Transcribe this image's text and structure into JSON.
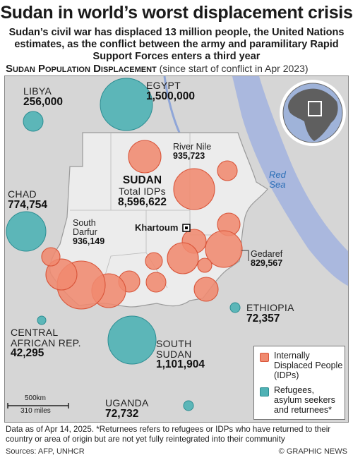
{
  "title": "Sudan in world’s worst displacement crisis",
  "subtitle": "Sudan’s civil war has displaced 13 million people, the United Nations estimates, as the conflict between the army and paramilitary Rapid Support Forces enters a third year",
  "section_title": "Sudan Population Displacement",
  "section_qualifier": "(since start of conflict in Apr 2023)",
  "sudan": {
    "name": "SUDAN",
    "label": "Total IDPs",
    "value": "8,596,622"
  },
  "countries": [
    {
      "name": "LIBYA",
      "value": "256,000"
    },
    {
      "name": "EGYPT",
      "value": "1,500,000"
    },
    {
      "name": "CHAD",
      "value": "774,754"
    },
    {
      "name": "CENTRAL AFRICAN REP.",
      "line1": "CENTRAL",
      "line2": "AFRICAN REP.",
      "value": "42,295"
    },
    {
      "name": "SOUTH SUDAN",
      "line1": "SOUTH",
      "line2": "SUDAN",
      "value": "1,101,904"
    },
    {
      "name": "ETHIOPIA",
      "value": "72,357"
    },
    {
      "name": "UGANDA",
      "value": "72,732"
    }
  ],
  "regions": [
    {
      "name": "River Nile",
      "value": "935,723"
    },
    {
      "name": "South Darfur",
      "line1": "South",
      "line2": "Darfur",
      "value": "936,149"
    },
    {
      "name": "Gedaref",
      "value": "829,567"
    }
  ],
  "capital": "Khartoum",
  "sea_label": {
    "line1": "Red",
    "line2": "Sea"
  },
  "legend": {
    "idps": "Internally Displaced People (IDPs)",
    "refugees": "Refugees, asylum seekers and returnees*"
  },
  "scale": {
    "km": "500km",
    "miles": "310 miles"
  },
  "colors": {
    "idp_fill": "#f08a6f",
    "idp_stroke": "#d9553a",
    "refugee_fill": "#4fb2b5",
    "refugee_stroke": "#2b8d92",
    "land": "#d9d9d9",
    "sudan_land": "#ececec",
    "water": "#aab8de"
  },
  "footnote": "Data as of Apr 14, 2025. *Returnees refers to refugees or IDPs who have returned to their country or area of origin but are not yet fully reintegrated into their community",
  "sources": "Sources: AFP, UNHCR",
  "credit": "© GRAPHIC NEWS"
}
